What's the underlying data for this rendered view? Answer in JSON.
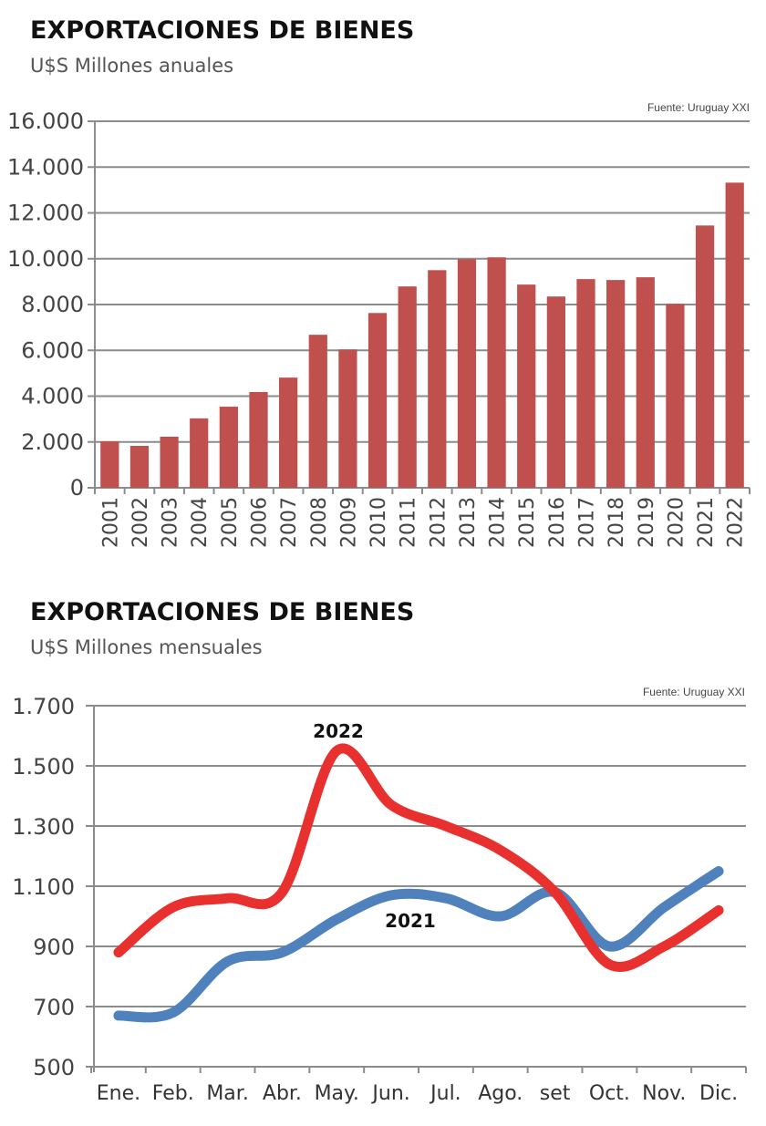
{
  "chart_data": [
    {
      "type": "bar",
      "title": "EXPORTACIONES DE BIENES",
      "subtitle": "U$S Millones anuales",
      "source": "Fuente: Uruguay XXI",
      "xlabel": "",
      "ylabel": "",
      "ylim": [
        0,
        16000
      ],
      "yticks": [
        0,
        2000,
        4000,
        6000,
        8000,
        10000,
        12000,
        14000,
        16000
      ],
      "ytick_labels": [
        "0",
        "2.000",
        "4.000",
        "6.000",
        "8.000",
        "10.000",
        "12.000",
        "14.000",
        "16.000"
      ],
      "grid": true,
      "bar_color": "#c0504d",
      "categories": [
        "2001",
        "2002",
        "2003",
        "2004",
        "2005",
        "2006",
        "2007",
        "2008",
        "2009",
        "2010",
        "2011",
        "2012",
        "2013",
        "2014",
        "2015",
        "2016",
        "2017",
        "2018",
        "2019",
        "2020",
        "2021",
        "2022"
      ],
      "values": [
        2030,
        1830,
        2230,
        3030,
        3540,
        4180,
        4810,
        6680,
        6040,
        7630,
        8790,
        9500,
        9980,
        10060,
        8870,
        8350,
        9110,
        9070,
        9190,
        8030,
        11450,
        13320
      ]
    },
    {
      "type": "line",
      "title": "EXPORTACIONES DE BIENES",
      "subtitle": "U$S Millones mensuales",
      "source": "Fuente: Uruguay XXI",
      "xlabel": "",
      "ylabel": "",
      "ylim": [
        500,
        1700
      ],
      "yticks": [
        500,
        700,
        900,
        1100,
        1300,
        1500,
        1700
      ],
      "ytick_labels": [
        "500",
        "700",
        "900",
        "1.100",
        "1.300",
        "1.500",
        "1.700"
      ],
      "grid": true,
      "x": [
        "Ene.",
        "Feb.",
        "Mar.",
        "Abr.",
        "May.",
        "Jun.",
        "Jul.",
        "Ago.",
        "set",
        "Oct.",
        "Nov.",
        "Dic."
      ],
      "series": [
        {
          "name": "2022",
          "color": "#e8312f",
          "values": [
            880,
            1030,
            1060,
            1080,
            1550,
            1370,
            1300,
            1220,
            1080,
            840,
            900,
            1020
          ]
        },
        {
          "name": "2021",
          "color": "#4f81bd",
          "values": [
            670,
            680,
            850,
            880,
            990,
            1070,
            1060,
            1000,
            1080,
            900,
            1030,
            1150
          ]
        }
      ]
    }
  ]
}
